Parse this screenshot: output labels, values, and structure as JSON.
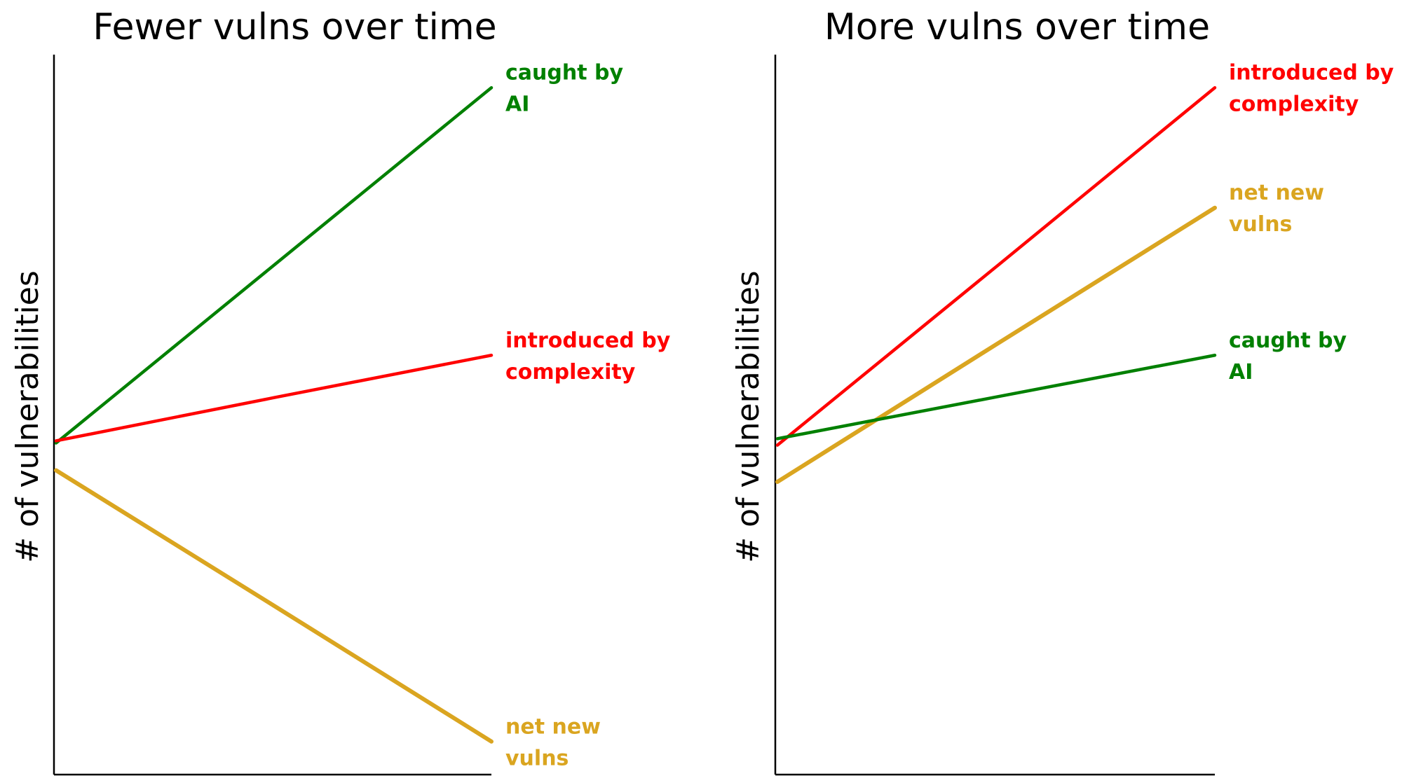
{
  "chart_data": [
    {
      "type": "line",
      "title": "Fewer vulns over time",
      "y_label": "# of vulnerabilities",
      "x": [
        0,
        5,
        10
      ],
      "xlim": [
        0,
        10
      ],
      "ylim": [
        0,
        100
      ],
      "series": [
        {
          "name": [
            "caught by",
            "AI"
          ],
          "color": "#008000",
          "values": [
            46.1,
            70.8,
            95.5
          ]
        },
        {
          "name": [
            "introduced by",
            "complexity"
          ],
          "color": "#ff0000",
          "values": [
            46.4,
            52.4,
            58.3
          ]
        },
        {
          "name": [
            "net new",
            "vulns"
          ],
          "color": "#daa520",
          "values": [
            42.3,
            23.5,
            4.6
          ]
        }
      ]
    },
    {
      "type": "line",
      "title": "More vulns over time",
      "y_label": "# of vulnerabilities",
      "x": [
        0,
        5,
        10
      ],
      "xlim": [
        0,
        10
      ],
      "ylim": [
        0,
        100
      ],
      "series": [
        {
          "name": [
            "introduced by",
            "complexity"
          ],
          "color": "#ff0000",
          "values": [
            45.8,
            70.6,
            95.5
          ]
        },
        {
          "name": [
            "net new",
            "vulns"
          ],
          "color": "#daa520",
          "values": [
            40.7,
            59.8,
            78.8
          ]
        },
        {
          "name": [
            "caught by",
            "AI"
          ],
          "color": "#008000",
          "values": [
            46.7,
            52.5,
            58.3
          ]
        }
      ]
    }
  ]
}
